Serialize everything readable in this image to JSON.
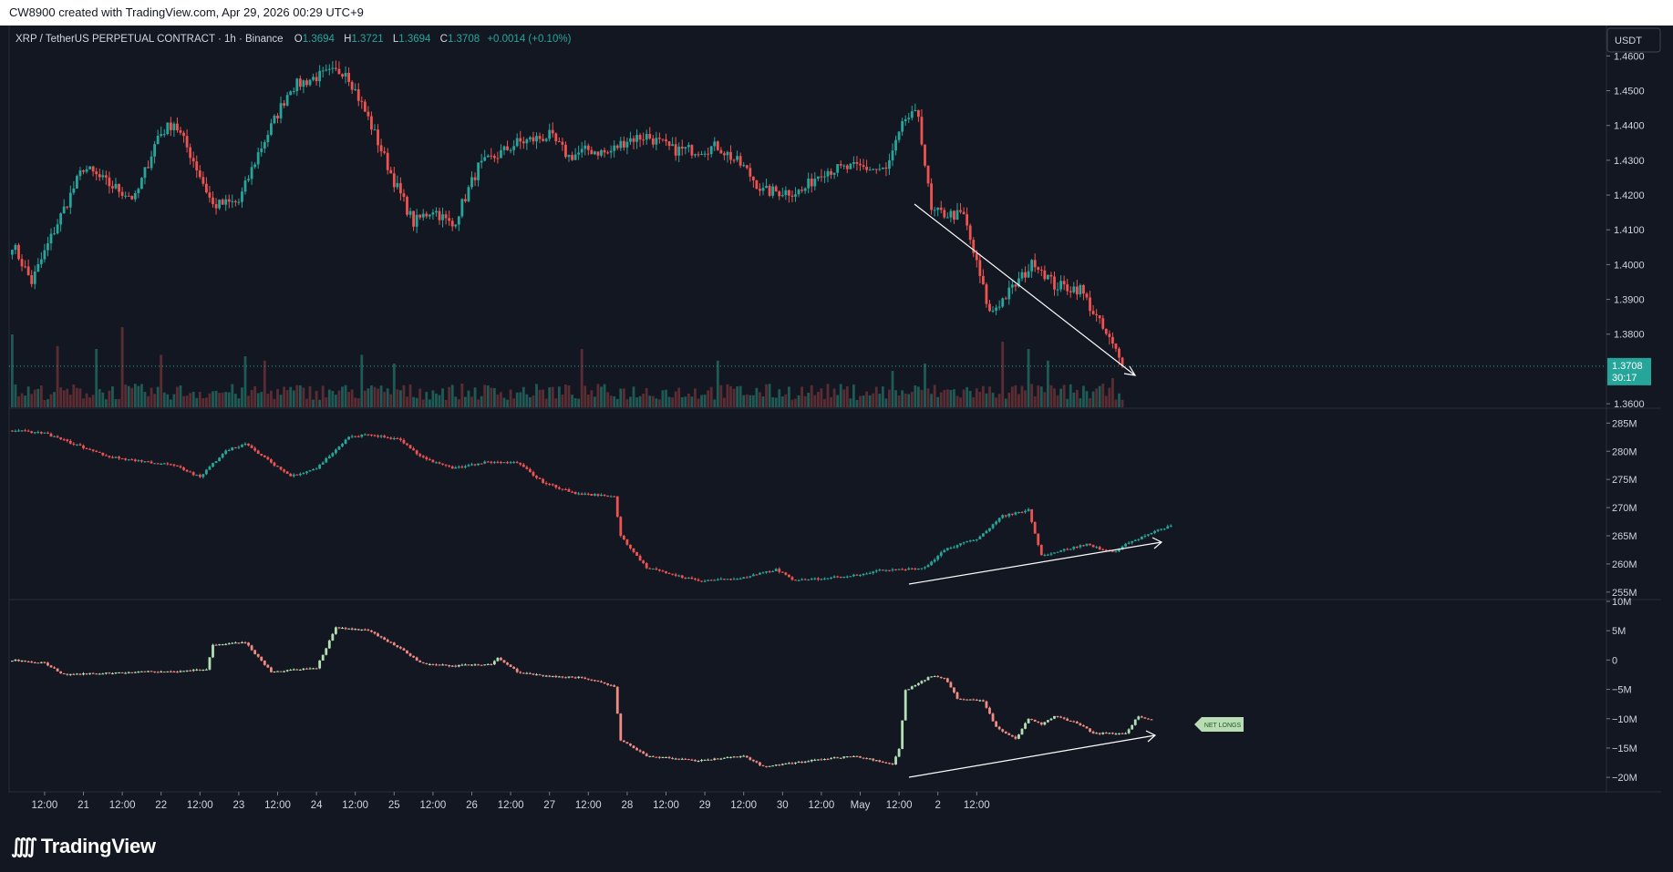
{
  "header": {
    "credit": "CW8900 created with TradingView.com, Apr 29, 2026 00:29 UTC+9"
  },
  "legend": {
    "symbol": "XRP / TetherUS PERPETUAL CONTRACT · 1h · Binance",
    "o_label": "O",
    "o_value": "1.3694",
    "h_label": "H",
    "h_value": "1.3721",
    "l_label": "L",
    "l_value": "1.3694",
    "c_label": "C",
    "c_value": "1.3708",
    "change": "+0.0014 (+0.10%)"
  },
  "price_scale": {
    "currency": "USDT",
    "ticks": [
      "1.4600",
      "1.4500",
      "1.4400",
      "1.4300",
      "1.4200",
      "1.4100",
      "1.4000",
      "1.3900",
      "1.3800",
      "1.3600"
    ],
    "last_price": "1.3708",
    "countdown": "30:17"
  },
  "oi_scale": {
    "ticks": [
      "285M",
      "280M",
      "275M",
      "270M",
      "265M",
      "260M",
      "255M"
    ]
  },
  "net_scale": {
    "ticks": [
      "10M",
      "5M",
      "0",
      "−5M",
      "−10M",
      "−15M",
      "−20M"
    ]
  },
  "annotation": {
    "net_longs": "NET LONGS"
  },
  "time_axis": {
    "labels": [
      "12:00",
      "21",
      "12:00",
      "22",
      "12:00",
      "23",
      "12:00",
      "24",
      "12:00",
      "25",
      "12:00",
      "26",
      "12:00",
      "27",
      "12:00",
      "28",
      "12:00",
      "29",
      "12:00",
      "30",
      "12:00",
      "May",
      "12:00",
      "2",
      "12:00"
    ]
  },
  "footer": {
    "logo_text": "TradingView"
  },
  "colors": {
    "up": "#26a69a",
    "down": "#ef5350",
    "up_light": "#b2dfb4",
    "down_light": "#f28b82",
    "background": "#131722"
  },
  "chart_data": [
    {
      "type": "candlestick",
      "title": "XRP / TetherUS PERPETUAL CONTRACT · 1h · Binance",
      "x_start": "Apr 20 02:00",
      "x_interval": "1h",
      "ylim": [
        1.3595,
        1.4635
      ],
      "close_anchors": [
        [
          0,
          1.406
        ],
        [
          6,
          1.395
        ],
        [
          14,
          1.412
        ],
        [
          22,
          1.428
        ],
        [
          30,
          1.423
        ],
        [
          38,
          1.419
        ],
        [
          45,
          1.437
        ],
        [
          50,
          1.441
        ],
        [
          56,
          1.43
        ],
        [
          62,
          1.417
        ],
        [
          70,
          1.418
        ],
        [
          76,
          1.432
        ],
        [
          86,
          1.451
        ],
        [
          94,
          1.454
        ],
        [
          103,
          1.456
        ],
        [
          110,
          1.442
        ],
        [
          118,
          1.424
        ],
        [
          124,
          1.412
        ],
        [
          130,
          1.416
        ],
        [
          136,
          1.411
        ],
        [
          144,
          1.428
        ],
        [
          156,
          1.435
        ],
        [
          166,
          1.437
        ],
        [
          172,
          1.431
        ],
        [
          178,
          1.433
        ],
        [
          184,
          1.432
        ],
        [
          190,
          1.436
        ],
        [
          196,
          1.437
        ],
        [
          204,
          1.433
        ],
        [
          212,
          1.433
        ],
        [
          218,
          1.434
        ],
        [
          226,
          1.428
        ],
        [
          232,
          1.421
        ],
        [
          244,
          1.421
        ],
        [
          250,
          1.427
        ],
        [
          262,
          1.428
        ],
        [
          270,
          1.427
        ],
        [
          276,
          1.442
        ],
        [
          280,
          1.443
        ],
        [
          284,
          1.415
        ],
        [
          294,
          1.414
        ],
        [
          298,
          1.4
        ],
        [
          302,
          1.386
        ],
        [
          308,
          1.392
        ],
        [
          316,
          1.401
        ],
        [
          322,
          1.394
        ],
        [
          330,
          1.393
        ],
        [
          336,
          1.383
        ],
        [
          341,
          1.375
        ],
        [
          343,
          1.3708
        ]
      ],
      "last_close": 1.3708,
      "volume": "relative bars, spikes near Apr 20, Apr 22 12:00, Apr 24 12:00, Apr 25, Apr 27 18:00, Apr 28"
    },
    {
      "type": "candlestick",
      "title": "",
      "ylim": [
        254,
        287
      ],
      "close_anchors": [
        [
          0,
          283.7
        ],
        [
          10,
          283.2
        ],
        [
          30,
          279
        ],
        [
          50,
          277.5
        ],
        [
          58,
          275.4
        ],
        [
          66,
          280.2
        ],
        [
          72,
          281.3
        ],
        [
          80,
          278
        ],
        [
          86,
          275.6
        ],
        [
          94,
          277
        ],
        [
          104,
          282.5
        ],
        [
          110,
          283
        ],
        [
          120,
          282
        ],
        [
          126,
          279
        ],
        [
          136,
          277
        ],
        [
          146,
          278
        ],
        [
          156,
          278
        ],
        [
          164,
          274.5
        ],
        [
          174,
          272.5
        ],
        [
          186,
          272
        ],
        [
          188,
          265
        ],
        [
          196,
          259.3
        ],
        [
          212,
          257
        ],
        [
          226,
          257.5
        ],
        [
          236,
          259
        ],
        [
          242,
          257
        ],
        [
          260,
          258
        ],
        [
          270,
          259
        ],
        [
          282,
          259.3
        ],
        [
          288,
          262.5
        ],
        [
          298,
          264.5
        ],
        [
          306,
          268.5
        ],
        [
          314,
          269.6
        ],
        [
          318,
          261.5
        ],
        [
          332,
          263.5
        ],
        [
          340,
          262
        ],
        [
          344,
          263.5
        ],
        [
          352,
          265.5
        ],
        [
          358,
          266.8
        ]
      ]
    },
    {
      "type": "candlestick",
      "title": "",
      "ylim": [
        -22,
        10
      ],
      "close_anchors": [
        [
          0,
          0
        ],
        [
          10,
          -0.5
        ],
        [
          16,
          -2.5
        ],
        [
          40,
          -2
        ],
        [
          50,
          -2
        ],
        [
          60,
          -1.5
        ],
        [
          62,
          2.5
        ],
        [
          72,
          3
        ],
        [
          80,
          -2
        ],
        [
          94,
          -1.3
        ],
        [
          100,
          5.5
        ],
        [
          110,
          5
        ],
        [
          120,
          2
        ],
        [
          126,
          -0.5
        ],
        [
          136,
          -1
        ],
        [
          148,
          -0.7
        ],
        [
          150,
          0.5
        ],
        [
          156,
          -2
        ],
        [
          164,
          -2.7
        ],
        [
          176,
          -3
        ],
        [
          186,
          -4.5
        ],
        [
          188,
          -13.7
        ],
        [
          196,
          -16.3
        ],
        [
          212,
          -17.2
        ],
        [
          226,
          -16.3
        ],
        [
          232,
          -18.2
        ],
        [
          246,
          -17.2
        ],
        [
          260,
          -16.3
        ],
        [
          272,
          -17.7
        ],
        [
          274,
          -15.2
        ],
        [
          276,
          -5.2
        ],
        [
          284,
          -2.7
        ],
        [
          288,
          -3
        ],
        [
          292,
          -6.5
        ],
        [
          300,
          -7
        ],
        [
          304,
          -11.5
        ],
        [
          310,
          -13.5
        ],
        [
          314,
          -10
        ],
        [
          318,
          -11
        ],
        [
          322,
          -9.5
        ],
        [
          330,
          -11
        ],
        [
          334,
          -12.5
        ],
        [
          344,
          -12.5
        ],
        [
          348,
          -9.5
        ],
        [
          350,
          -10
        ],
        [
          352,
          -10.2
        ]
      ]
    }
  ]
}
